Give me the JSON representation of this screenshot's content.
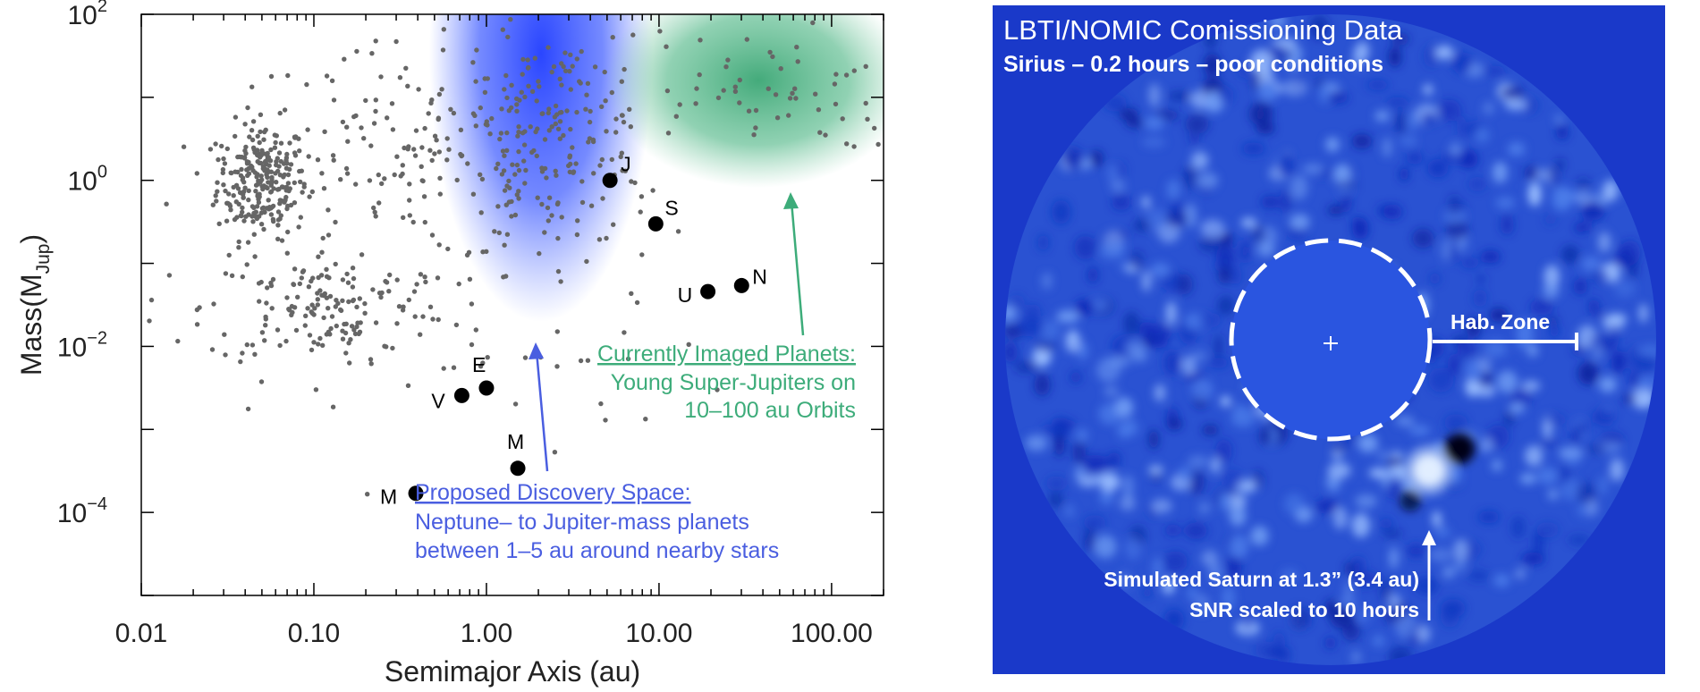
{
  "chart_data": {
    "type": "scatter",
    "xlabel": "Semimajor Axis (au)",
    "ylabel_main": "Mass(M",
    "ylabel_sub": "Jup",
    "ylabel_close": ")",
    "x_scale": "log",
    "y_scale": "log",
    "xlim": [
      0.01,
      200
    ],
    "ylim": [
      1e-05,
      100
    ],
    "x_ticks": [
      {
        "value": 0.01,
        "label": "0.01"
      },
      {
        "value": 0.1,
        "label": "0.10"
      },
      {
        "value": 1,
        "label": "1.00"
      },
      {
        "value": 10,
        "label": "10.00"
      },
      {
        "value": 100,
        "label": "100.00"
      }
    ],
    "y_ticks": [
      {
        "value": 100,
        "base": "10",
        "exp": "2"
      },
      {
        "value": 1,
        "base": "10",
        "exp": "0"
      },
      {
        "value": 0.01,
        "base": "10",
        "exp": "−2"
      },
      {
        "value": 0.0001,
        "base": "10",
        "exp": "−4"
      }
    ],
    "solar_system_planets": [
      {
        "label": "M",
        "a": 0.39,
        "mass": 0.00017
      },
      {
        "label": "V",
        "a": 0.72,
        "mass": 0.00256
      },
      {
        "label": "E",
        "a": 1.0,
        "mass": 0.00315
      },
      {
        "label": "M",
        "a": 1.52,
        "mass": 0.00034
      },
      {
        "label": "J",
        "a": 5.2,
        "mass": 1.0
      },
      {
        "label": "S",
        "a": 9.58,
        "mass": 0.299
      },
      {
        "label": "U",
        "a": 19.2,
        "mass": 0.0457
      },
      {
        "label": "N",
        "a": 30.1,
        "mass": 0.054
      }
    ],
    "exoplanet_clusters": [
      {
        "name": "hot-jupiters",
        "a_center": 0.05,
        "a_spread_dex": 0.13,
        "mass_center": 1.0,
        "mass_spread_dex": 0.35,
        "count": 260
      },
      {
        "name": "warm-giants",
        "a_center": 0.4,
        "a_spread_dex": 0.55,
        "mass_center": 2.0,
        "mass_spread_dex": 0.65,
        "count": 170
      },
      {
        "name": "cool-giants",
        "a_center": 2.5,
        "a_spread_dex": 0.3,
        "mass_center": 3.0,
        "mass_spread_dex": 0.65,
        "count": 170
      },
      {
        "name": "neptunes",
        "a_center": 0.12,
        "a_spread_dex": 0.35,
        "mass_center": 0.03,
        "mass_spread_dex": 0.35,
        "count": 150
      },
      {
        "name": "imaged",
        "a_center": 40,
        "a_spread_dex": 0.45,
        "mass_center": 12,
        "mass_spread_dex": 0.35,
        "count": 60
      },
      {
        "name": "scattered",
        "a_center": 0.5,
        "a_spread_dex": 0.85,
        "mass_center": 0.01,
        "mass_spread_dex": 0.8,
        "count": 50
      }
    ],
    "regions": [
      {
        "name": "proposed-discovery-space",
        "color": "#2c4dff"
      },
      {
        "name": "currently-imaged",
        "color": "#3dac7a"
      }
    ],
    "annotations": {
      "imaged_title": "Currently Imaged Planets:",
      "imaged_line1": "Young Super-Jupiters on",
      "imaged_line2": "10–100 au Orbits",
      "discovery_title": "Proposed Discovery Space:",
      "discovery_line1": "Neptune– to Jupiter-mass planets",
      "discovery_line2": "between 1–5 au around nearby stars"
    },
    "colors": {
      "points": "#666666",
      "imaged_text": "#3dac7a",
      "discovery_text": "#4a5ee0",
      "planet": "#000000"
    }
  },
  "image_panel": {
    "title": "LBTI/NOMIC Comissioning Data",
    "subtitle": "Sirius – 0.2 hours – poor conditions",
    "hab_zone_label": "Hab. Zone",
    "simulated_line1": "Simulated Saturn at 1.3” (3.4 au)",
    "simulated_line2": "SNR scaled to 10 hours",
    "colors": {
      "frame_bg": "#1a39c9",
      "field_bg": "#2a52d2",
      "mask_fill": "#2a55e0"
    }
  }
}
